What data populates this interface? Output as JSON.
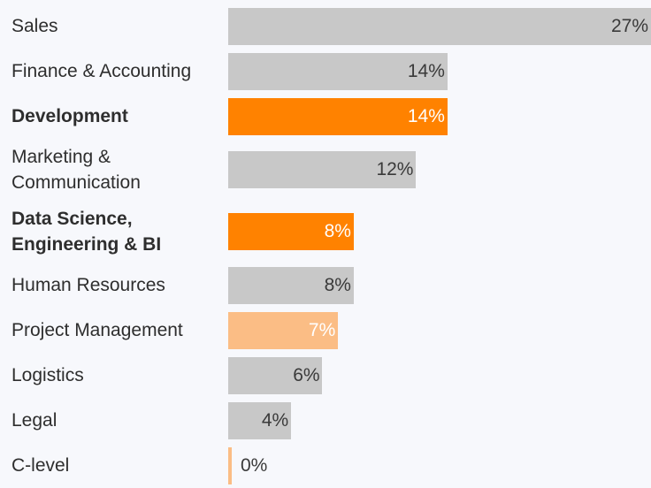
{
  "chart_data": {
    "type": "bar",
    "orientation": "horizontal",
    "categories": [
      "Sales",
      "Finance & Accounting",
      "Development",
      "Marketing & Communication",
      "Data Science, Engineering & BI",
      "Human Resources",
      "Project Management",
      "Logistics",
      "Legal",
      "C-level"
    ],
    "values": [
      27,
      14,
      14,
      12,
      8,
      8,
      7,
      6,
      4,
      0
    ],
    "value_labels": [
      "27%",
      "14%",
      "14%",
      "12%",
      "8%",
      "8%",
      "7%",
      "6%",
      "4%",
      "0%"
    ],
    "colors": [
      "#c8c8c8",
      "#c8c8c8",
      "#ff8200",
      "#c8c8c8",
      "#ff8200",
      "#c8c8c8",
      "#fbbd85",
      "#c8c8c8",
      "#c8c8c8",
      "#fbbd85"
    ],
    "label_colors": [
      "#3a3a3a",
      "#3a3a3a",
      "#ffffff",
      "#3a3a3a",
      "#ffffff",
      "#3a3a3a",
      "#ffffff",
      "#3a3a3a",
      "#3a3a3a",
      "#3a3a3a"
    ],
    "bold": [
      false,
      false,
      true,
      false,
      true,
      false,
      false,
      false,
      false,
      false
    ]
  }
}
